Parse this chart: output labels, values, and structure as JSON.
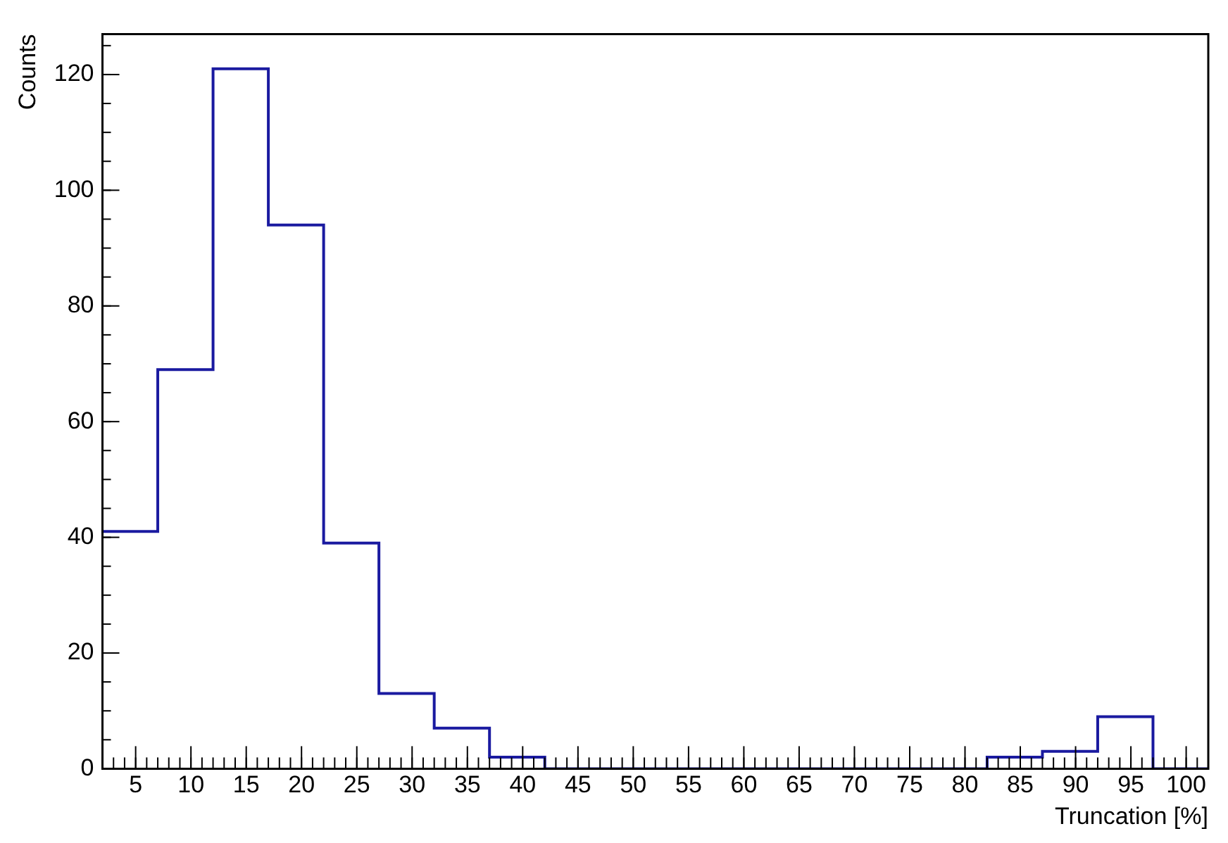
{
  "chart_data": {
    "type": "histogram",
    "xlabel": "Truncation [%]",
    "ylabel": "Counts",
    "bins": [
      2,
      7,
      12,
      17,
      22,
      27,
      32,
      37,
      42,
      47,
      52,
      57,
      62,
      67,
      72,
      77,
      82,
      87,
      92,
      97,
      102
    ],
    "values": [
      41,
      69,
      121,
      94,
      39,
      13,
      7,
      2,
      0,
      0,
      0,
      0,
      0,
      0,
      0,
      0,
      2,
      3,
      9,
      0
    ],
    "color": "#1a1aa0",
    "xlim": [
      2,
      102
    ],
    "xticks": [
      5,
      10,
      15,
      20,
      25,
      30,
      35,
      40,
      45,
      50,
      55,
      60,
      65,
      70,
      75,
      80,
      85,
      90,
      95,
      100
    ],
    "ylim": [
      0,
      127
    ],
    "yticks": [
      0,
      20,
      40,
      60,
      80,
      100,
      120
    ],
    "grid": false
  }
}
